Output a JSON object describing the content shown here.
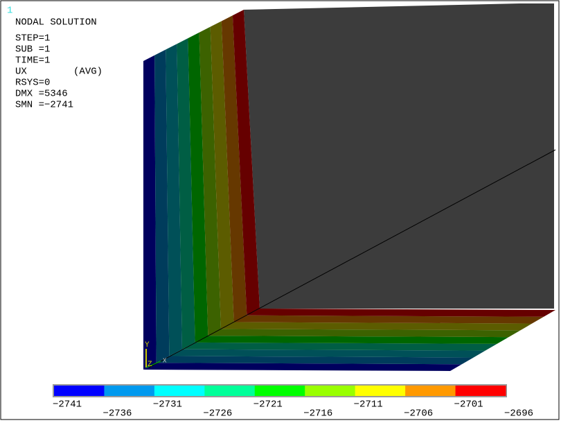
{
  "window_number": "1",
  "info": {
    "title": "NODAL SOLUTION",
    "lines": [
      "STEP=1",
      "SUB =1",
      "TIME=1",
      "UX        (AVG)",
      "RSYS=0",
      "DMX =5346",
      "SMN =−2741"
    ]
  },
  "triad": {
    "y": "Y",
    "z": "Z",
    "x": "X"
  },
  "legend": {
    "colors": [
      "#0000ff",
      "#0099ee",
      "#00ffff",
      "#00ff99",
      "#00ff00",
      "#99ff00",
      "#ffff00",
      "#ff9900",
      "#ff0000"
    ],
    "labels": [
      "−2741",
      "−2736",
      "−2731",
      "−2726",
      "−2721",
      "−2716",
      "−2711",
      "−2706",
      "−2701",
      "−2696"
    ]
  }
}
